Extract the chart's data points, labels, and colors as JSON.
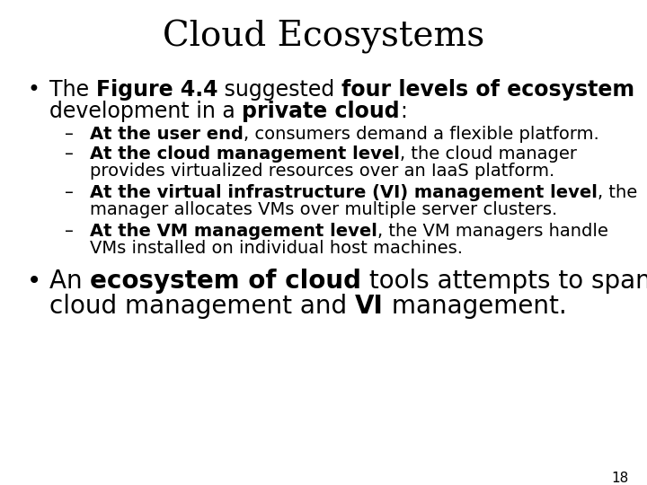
{
  "title": "Cloud Ecosystems",
  "title_fontsize": 28,
  "title_font": "DejaVu Serif",
  "background_color": "#ffffff",
  "text_color": "#000000",
  "page_number": "18",
  "main_bullet_fontsize": 17,
  "sub_bullet_fontsize": 14,
  "bullet2_fontsize": 20
}
